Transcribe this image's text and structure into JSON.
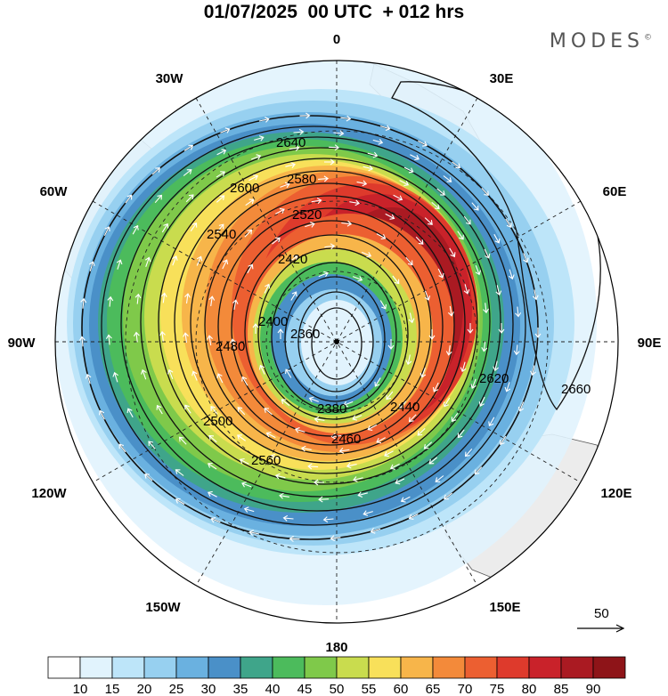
{
  "title": "01/07/2025  00 UTC  + 012 hrs",
  "brand": "MODES",
  "brand_mark": "©",
  "longitude_labels": [
    {
      "text": "0",
      "bearing": 0
    },
    {
      "text": "30E",
      "bearing": 30
    },
    {
      "text": "60E",
      "bearing": 60
    },
    {
      "text": "90E",
      "bearing": 90
    },
    {
      "text": "120E",
      "bearing": 120
    },
    {
      "text": "150E",
      "bearing": 150
    },
    {
      "text": "180",
      "bearing": 180
    },
    {
      "text": "150W",
      "bearing": 210
    },
    {
      "text": "120W",
      "bearing": 240
    },
    {
      "text": "90W",
      "bearing": 270
    },
    {
      "text": "60W",
      "bearing": 300
    },
    {
      "text": "30W",
      "bearing": 330
    }
  ],
  "contour_labels": [
    "2640",
    "2600",
    "2580",
    "2560",
    "2540",
    "2520",
    "2500",
    "2480",
    "2460",
    "2440",
    "2420",
    "2400",
    "2380",
    "2360",
    "2620",
    "2660"
  ],
  "vector_reference": {
    "value": "50"
  },
  "colorbar": {
    "ticks": [
      "10",
      "15",
      "20",
      "25",
      "30",
      "35",
      "40",
      "45",
      "50",
      "55",
      "60",
      "65",
      "70",
      "75",
      "80",
      "85",
      "90"
    ],
    "colors": [
      "#ffffff",
      "#e1f3fd",
      "#bde5f9",
      "#97d0f0",
      "#6ab1e0",
      "#4a90c8",
      "#3fa58a",
      "#4cbb5c",
      "#7fc94a",
      "#c9dc4e",
      "#f8e05a",
      "#f7b54a",
      "#f38a3a",
      "#ec5f31",
      "#de3a2c",
      "#c9222a",
      "#aa1a22",
      "#8e1418"
    ]
  },
  "colors": {
    "land": "#ececec",
    "coast": "#444444",
    "contour": "#111111",
    "vector": "#ffffff"
  }
}
